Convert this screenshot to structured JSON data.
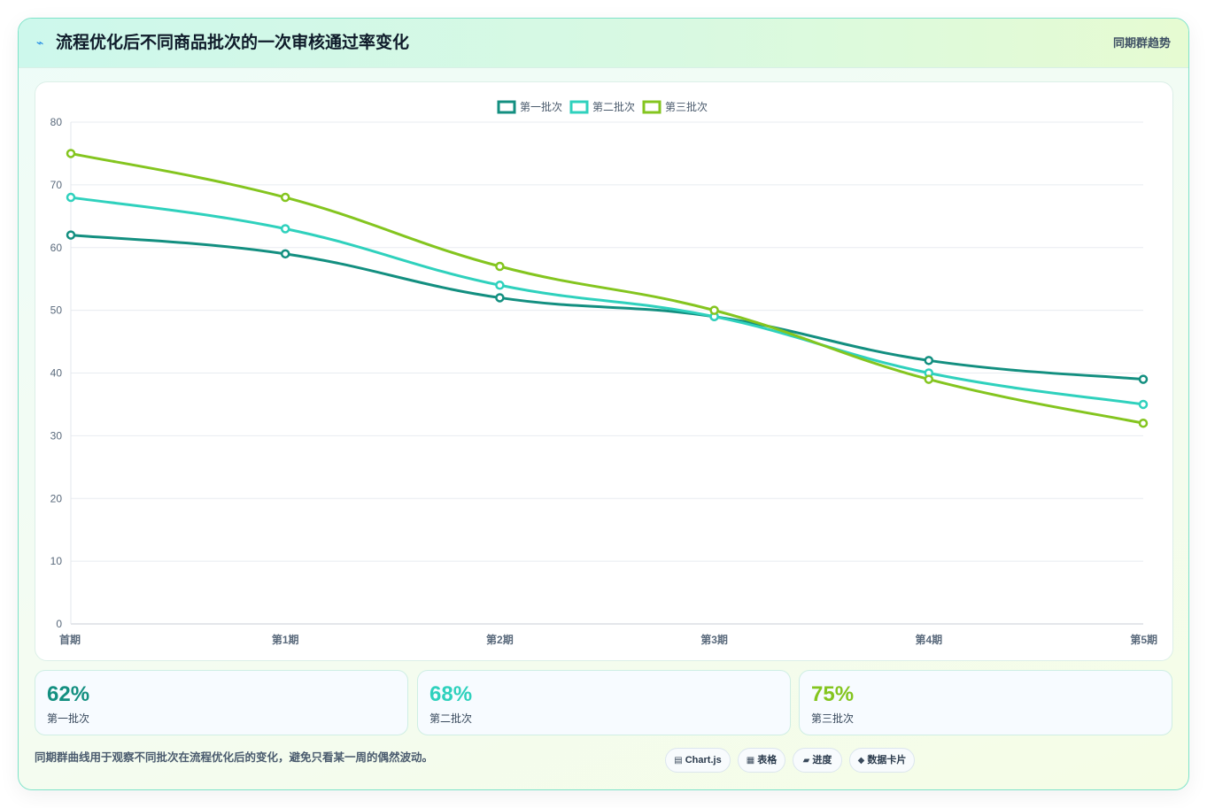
{
  "header": {
    "icon": "chart-line-icon",
    "title": "流程优化后不同商品批次的一次审核通过率变化",
    "right_label": "同期群趋势"
  },
  "chart_data": {
    "type": "line",
    "categories": [
      "首期",
      "第1期",
      "第2期",
      "第3期",
      "第4期",
      "第5期"
    ],
    "series": [
      {
        "name": "第一批次",
        "color": "#138f80",
        "values": [
          62,
          59,
          52,
          49,
          42,
          39
        ]
      },
      {
        "name": "第二批次",
        "color": "#2fd1bd",
        "values": [
          68,
          63,
          54,
          49,
          40,
          35
        ]
      },
      {
        "name": "第三批次",
        "color": "#84c51f",
        "values": [
          75,
          68,
          57,
          50,
          39,
          32
        ]
      }
    ],
    "ylim": [
      0,
      80
    ],
    "yticks": [
      0,
      10,
      20,
      30,
      40,
      50,
      60,
      70,
      80
    ],
    "legend": "top-center",
    "grid": true
  },
  "stats": [
    {
      "value": "62%",
      "label": "第一批次",
      "color": "#138f80"
    },
    {
      "value": "68%",
      "label": "第二批次",
      "color": "#2fd1bd"
    },
    {
      "value": "75%",
      "label": "第三批次",
      "color": "#84c51f"
    }
  ],
  "footer": {
    "note": "同期群曲线用于观察不同批次在流程优化后的变化，避免只看某一周的偶然波动。",
    "pills": [
      {
        "icon": "chart-icon",
        "label": "Chart.js"
      },
      {
        "icon": "table-icon",
        "label": "表格"
      },
      {
        "icon": "progress-icon",
        "label": "进度"
      },
      {
        "icon": "data-card-icon",
        "label": "数据卡片"
      }
    ]
  }
}
